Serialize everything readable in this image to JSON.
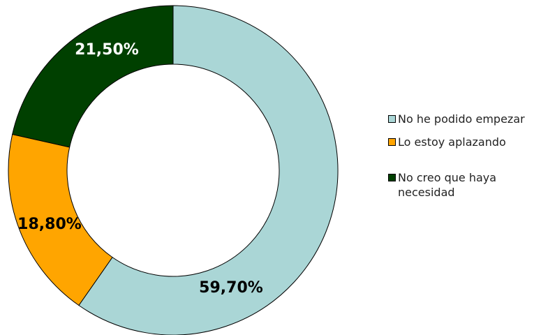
{
  "chart_data": {
    "type": "pie",
    "donut": true,
    "categories": [
      "No he podido empezar",
      "Lo estoy aplazando",
      "No creo que haya necesidad"
    ],
    "values": [
      59.7,
      18.8,
      21.5
    ],
    "data_labels": [
      "59,70%",
      "18,80%",
      "21,50%"
    ],
    "colors": [
      "#aad6d6",
      "#ffa500",
      "#004000"
    ],
    "label_colors": [
      "#000000",
      "#000000",
      "#ffffff"
    ],
    "legend": "right",
    "title": ""
  },
  "legend": {
    "items": [
      {
        "label": "No he podido empezar"
      },
      {
        "label": "Lo estoy aplazando"
      },
      {
        "label": "No creo que haya necesidad"
      }
    ]
  }
}
